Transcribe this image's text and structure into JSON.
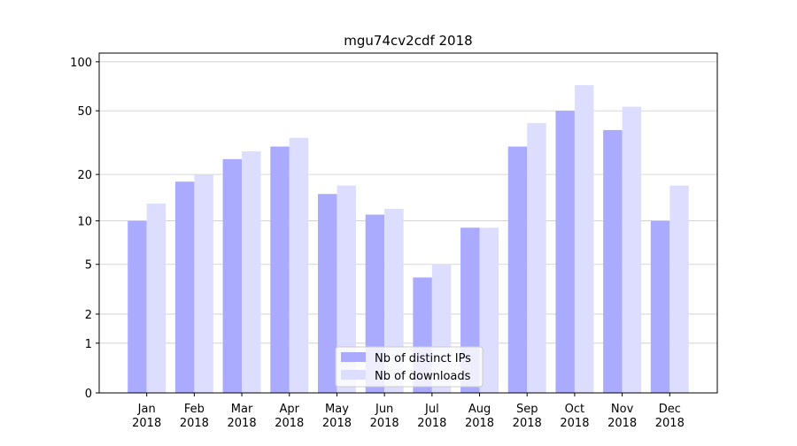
{
  "chart_data": {
    "type": "bar",
    "title": "mgu74cv2cdf 2018",
    "categories": [
      "Jan 2018",
      "Feb 2018",
      "Mar 2018",
      "Apr 2018",
      "May 2018",
      "Jun 2018",
      "Jul 2018",
      "Aug 2018",
      "Sep 2018",
      "Oct 2018",
      "Nov 2018",
      "Dec 2018"
    ],
    "series": [
      {
        "name": "Nb of distinct IPs",
        "color": "#aaaaff",
        "values": [
          10,
          18,
          25,
          30,
          15,
          11,
          4,
          9,
          30,
          50,
          38,
          10
        ]
      },
      {
        "name": "Nb of downloads",
        "color": "#ddddff",
        "values": [
          13,
          20,
          28,
          34,
          17,
          12,
          5,
          9,
          42,
          72,
          53,
          17
        ]
      }
    ],
    "yscale": "log1p",
    "ylim": [
      0,
      113
    ],
    "yticks": [
      0,
      1,
      2,
      5,
      10,
      20,
      50,
      100
    ],
    "grid": true,
    "legend": "lower center"
  }
}
